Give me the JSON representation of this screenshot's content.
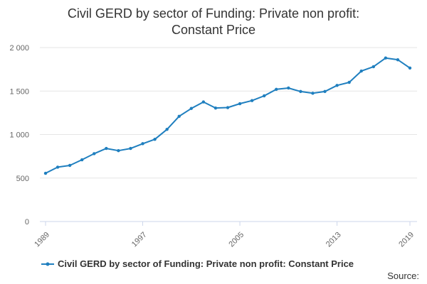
{
  "chart_data": {
    "type": "line",
    "title_line1": "Civil GERD by sector of Funding: Private non profit:",
    "title_line2": "Constant Price",
    "xlabel": "",
    "ylabel": "",
    "x_tick_labels": [
      "1989",
      "1997",
      "2005",
      "2013",
      "2019"
    ],
    "x_ticks": [
      1989,
      1997,
      2005,
      2013,
      2019
    ],
    "y_tick_labels": [
      "0",
      "500",
      "1 000",
      "1 500",
      "2 000"
    ],
    "y_ticks": [
      0,
      500,
      1000,
      1500,
      2000
    ],
    "xlim": [
      1989,
      2019
    ],
    "ylim": [
      0,
      2000
    ],
    "grid": "horizontal",
    "legend_position": "bottom",
    "series": [
      {
        "name": "Civil GERD by sector of Funding: Private non profit: Constant Price",
        "color": "#1f7fbf",
        "x": [
          1989,
          1990,
          1991,
          1992,
          1993,
          1994,
          1995,
          1996,
          1997,
          1998,
          1999,
          2000,
          2001,
          2002,
          2003,
          2004,
          2005,
          2006,
          2007,
          2008,
          2009,
          2010,
          2011,
          2012,
          2013,
          2014,
          2015,
          2016,
          2017,
          2018,
          2019
        ],
        "values": [
          555,
          625,
          645,
          710,
          780,
          840,
          815,
          840,
          895,
          945,
          1060,
          1210,
          1300,
          1375,
          1305,
          1310,
          1355,
          1390,
          1445,
          1520,
          1535,
          1495,
          1475,
          1495,
          1565,
          1600,
          1730,
          1780,
          1880,
          1860,
          1765
        ]
      }
    ]
  },
  "source_label": "Source:"
}
